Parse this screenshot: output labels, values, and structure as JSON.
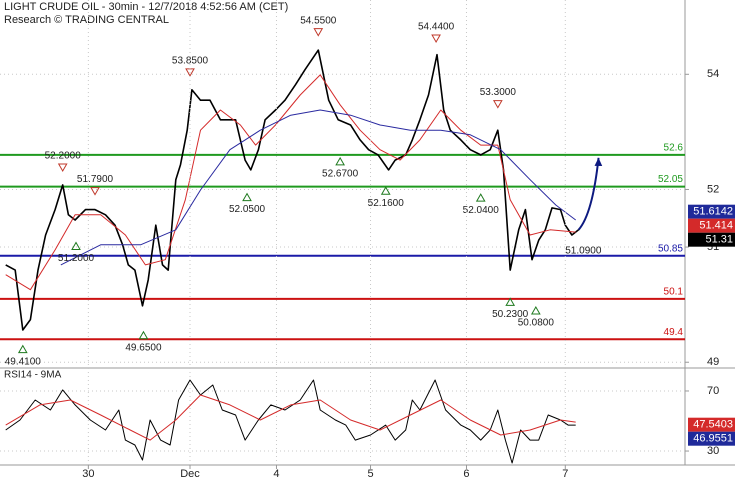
{
  "chart_data": [
    {
      "type": "line",
      "title": "LIGHT CRUDE OIL - 30min - 12/7/2018 4:52:56 AM (CET)",
      "subtitle": "Research © TRADING CENTRAL",
      "xlim": [
        0.07,
        7.28
      ],
      "ylim": [
        48.9,
        55.29
      ],
      "yticks": [
        49,
        51,
        52,
        54
      ],
      "grid": true,
      "series": [
        {
          "color": "#000000",
          "width": 1.6,
          "x": [
            0.13,
            0.23,
            0.31,
            0.39,
            0.47,
            0.55,
            0.65,
            0.73,
            0.79,
            0.86,
            0.97,
            1.07,
            1.18,
            1.28,
            1.36,
            1.42,
            1.49,
            1.57,
            1.63,
            1.71,
            1.78,
            1.84,
            1.92,
            1.97,
            2.04,
            2.09,
            2.18,
            2.28,
            2.39,
            2.55,
            2.65,
            2.71,
            2.79,
            2.86,
            2.97,
            3.07,
            3.18,
            3.28,
            3.42,
            3.53,
            3.63,
            3.76,
            3.86,
            3.95,
            4.05,
            4.16,
            4.23,
            4.34,
            4.41,
            4.49,
            4.58,
            4.67,
            4.74,
            4.81,
            4.92,
            5.02,
            5.13,
            5.23,
            5.31,
            5.37,
            5.44,
            5.53,
            5.6,
            5.67,
            5.74,
            5.81,
            5.88,
            5.97,
            6.02,
            6.09,
            6.16
          ],
          "values": [
            50.69,
            50.6,
            49.56,
            49.74,
            50.6,
            51.21,
            51.65,
            52.08,
            51.56,
            51.47,
            51.65,
            51.65,
            51.56,
            51.38,
            51.04,
            50.69,
            50.6,
            49.98,
            50.43,
            51.38,
            50.69,
            50.6,
            52.17,
            52.43,
            53.03,
            53.73,
            53.55,
            53.55,
            53.21,
            53.21,
            52.51,
            52.34,
            52.69,
            53.21,
            53.38,
            53.55,
            53.82,
            54.08,
            54.42,
            53.55,
            53.21,
            53.12,
            52.86,
            52.69,
            52.6,
            52.34,
            52.51,
            52.6,
            52.86,
            53.21,
            53.64,
            54.34,
            53.38,
            53.03,
            52.86,
            52.69,
            52.6,
            52.69,
            53.03,
            52.34,
            50.6,
            51.3,
            51.65,
            50.78,
            51.12,
            51.3,
            51.68,
            51.65,
            51.38,
            51.21,
            51.3
          ]
        },
        {
          "color": "#d42a2a",
          "width": 1,
          "x": [
            0.13,
            0.39,
            0.65,
            0.86,
            1.13,
            1.39,
            1.6,
            1.81,
            2.02,
            2.18,
            2.39,
            2.6,
            2.76,
            2.97,
            3.23,
            3.44,
            3.65,
            3.86,
            4.07,
            4.28,
            4.49,
            4.71,
            4.92,
            5.13,
            5.31,
            5.44,
            5.65,
            5.86,
            6.13
          ],
          "values": [
            50.52,
            50.26,
            50.95,
            51.56,
            51.56,
            51.21,
            50.69,
            50.78,
            51.82,
            53.03,
            53.38,
            53.12,
            52.77,
            53.12,
            53.64,
            53.99,
            53.47,
            53.03,
            52.69,
            52.51,
            52.86,
            53.38,
            53.03,
            52.77,
            52.77,
            51.82,
            51.21,
            51.3,
            51.26
          ]
        },
        {
          "color": "#2a2aa0",
          "width": 1,
          "x": [
            0.71,
            1.13,
            1.55,
            1.92,
            2.18,
            2.49,
            2.81,
            3.13,
            3.44,
            3.76,
            4.07,
            4.39,
            4.71,
            5.02,
            5.34,
            5.65,
            5.92,
            6.13
          ],
          "values": [
            50.69,
            51.04,
            51.04,
            51.3,
            51.99,
            52.69,
            53.03,
            53.29,
            53.38,
            53.29,
            53.12,
            53.03,
            53.03,
            52.95,
            52.69,
            52.17,
            51.73,
            51.47
          ]
        }
      ],
      "levels": [
        {
          "value": 52.6,
          "color": "#1f9a1f"
        },
        {
          "value": 52.05,
          "color": "#1f9a1f"
        },
        {
          "value": 50.85,
          "color": "#1a1aa8"
        },
        {
          "value": 50.1,
          "color": "#cc1111"
        },
        {
          "value": 49.4,
          "color": "#cc1111"
        }
      ],
      "annotations": [
        {
          "x": 0.73,
          "value": 52.2,
          "label": "52.2000",
          "marker": "down"
        },
        {
          "x": 1.07,
          "value": 51.79,
          "label": "51.7900",
          "marker": "down"
        },
        {
          "x": 0.87,
          "value": 51.2,
          "label": "51.2000",
          "marker": "up"
        },
        {
          "x": 0.31,
          "value": 49.41,
          "label": "49.4100",
          "marker": "up"
        },
        {
          "x": 1.58,
          "value": 49.65,
          "label": "49.6500",
          "marker": "up"
        },
        {
          "x": 2.07,
          "value": 53.85,
          "label": "53.8500",
          "marker": "down"
        },
        {
          "x": 2.67,
          "value": 52.05,
          "label": "52.0500",
          "marker": "up"
        },
        {
          "x": 3.42,
          "value": 54.55,
          "label": "54.5500",
          "marker": "down"
        },
        {
          "x": 3.65,
          "value": 52.67,
          "label": "52.6700",
          "marker": "up"
        },
        {
          "x": 4.13,
          "value": 52.16,
          "label": "52.1600",
          "marker": "up"
        },
        {
          "x": 4.66,
          "value": 54.44,
          "label": "54.4400",
          "marker": "down"
        },
        {
          "x": 5.31,
          "value": 53.3,
          "label": "53.3000",
          "marker": "down"
        },
        {
          "x": 5.13,
          "value": 52.04,
          "label": "52.0400",
          "marker": "up"
        },
        {
          "x": 5.44,
          "value": 50.23,
          "label": "50.2300",
          "marker": "up"
        },
        {
          "x": 5.71,
          "value": 50.08,
          "label": "50.0800",
          "marker": "up"
        },
        {
          "x": 6.21,
          "value": 51.09,
          "label": "51.0900",
          "marker": "none"
        }
      ],
      "projection": {
        "color": "#0d1a80",
        "x": [
          6.16,
          6.37
        ],
        "values": [
          51.3,
          52.55
        ]
      },
      "last_value_tags": [
        {
          "value": 51.6142,
          "color": "#1f2a9a"
        },
        {
          "value": 51.414,
          "color": "#d42a2a"
        },
        {
          "value": 51.31,
          "color": "#000000"
        }
      ]
    },
    {
      "type": "line",
      "title": "RSI14 - 9MA",
      "xlim": [
        0.07,
        7.28
      ],
      "ylim": [
        20.7,
        85.3
      ],
      "yticks": [
        30,
        70
      ],
      "xticks": [
        {
          "value": 1,
          "label": "30"
        },
        {
          "value": 2.07,
          "label": "Dec"
        },
        {
          "value": 2.98,
          "label": "4"
        },
        {
          "value": 3.97,
          "label": "5"
        },
        {
          "value": 4.98,
          "label": "6"
        },
        {
          "value": 6.02,
          "label": "7"
        }
      ],
      "grid": true,
      "series": [
        {
          "color": "#000000",
          "width": 1,
          "x": [
            0.13,
            0.28,
            0.44,
            0.6,
            0.73,
            0.86,
            1.02,
            1.18,
            1.32,
            1.39,
            1.49,
            1.57,
            1.65,
            1.76,
            1.86,
            1.95,
            2.07,
            2.18,
            2.31,
            2.41,
            2.55,
            2.65,
            2.79,
            2.92,
            3.07,
            3.23,
            3.37,
            3.44,
            3.6,
            3.71,
            3.81,
            3.97,
            4.13,
            4.23,
            4.34,
            4.41,
            4.49,
            4.65,
            4.76,
            4.92,
            5.02,
            5.13,
            5.23,
            5.31,
            5.39,
            5.46,
            5.55,
            5.65,
            5.74,
            5.84,
            5.97,
            6.05,
            6.13
          ],
          "values": [
            44,
            50.7,
            64,
            57.3,
            70.7,
            60.7,
            50.7,
            44,
            57.3,
            37.3,
            34,
            24,
            50.7,
            37.3,
            34,
            64,
            77.3,
            67.3,
            74,
            57.3,
            54,
            37.3,
            50.7,
            60.7,
            57.3,
            64,
            77.3,
            57.3,
            50.7,
            47.3,
            37.3,
            40.7,
            47.3,
            37.3,
            44,
            64,
            57.3,
            77.3,
            57.3,
            47.3,
            44,
            37.3,
            44,
            57.3,
            37.3,
            22,
            44,
            37.3,
            37.3,
            54,
            50.7,
            47.3,
            47.3
          ]
        },
        {
          "color": "#d42a2a",
          "width": 1,
          "x": [
            0.13,
            0.49,
            0.81,
            1.13,
            1.44,
            1.65,
            1.92,
            2.18,
            2.49,
            2.81,
            3.13,
            3.44,
            3.76,
            4.07,
            4.39,
            4.71,
            5.02,
            5.34,
            5.65,
            5.97,
            6.13
          ],
          "values": [
            47.3,
            60.7,
            64,
            54,
            44,
            37.3,
            50.7,
            67.3,
            60.7,
            50.7,
            60.7,
            64,
            50.7,
            44,
            54,
            64,
            50.7,
            40.7,
            44,
            50.7,
            49.3
          ]
        }
      ],
      "last_value_tags": [
        {
          "value": 47.5403,
          "color": "#d42a2a"
        },
        {
          "value": 46.9551,
          "color": "#1f2a9a"
        }
      ]
    }
  ]
}
